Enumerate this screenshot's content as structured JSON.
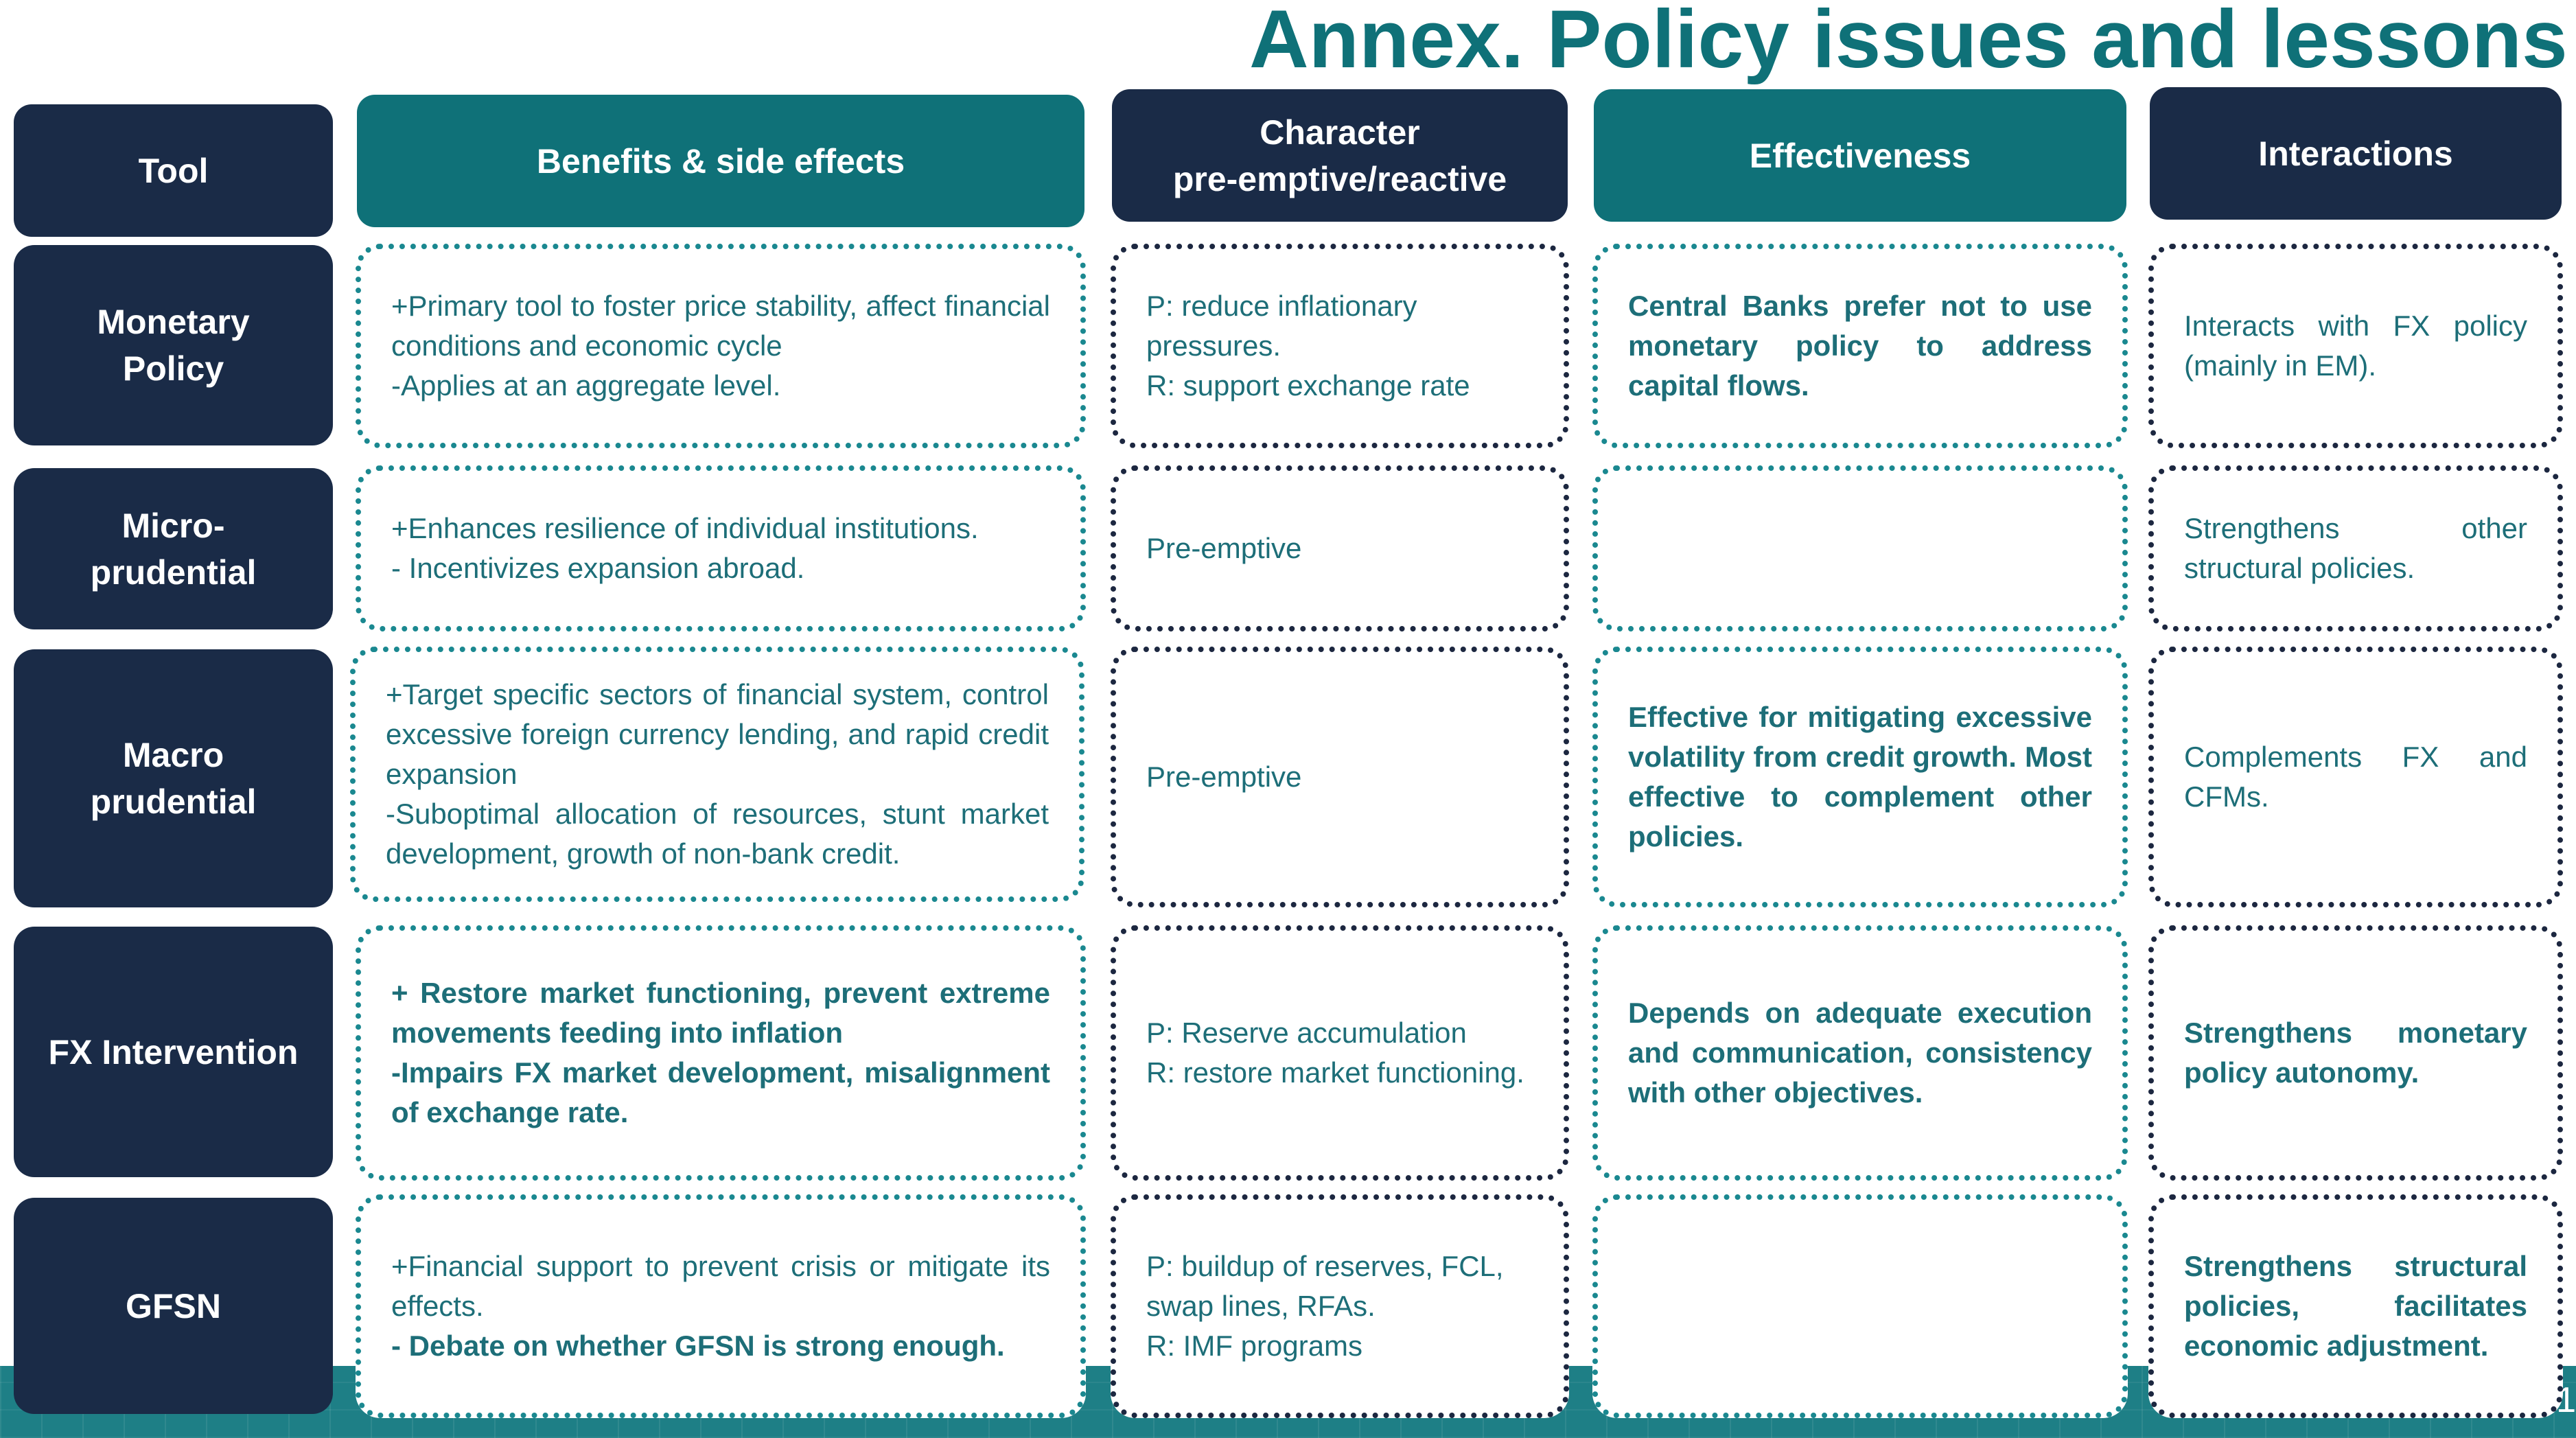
{
  "title": "Annex. Policy issues and lessons",
  "page_number": "1",
  "colors": {
    "navy": "#1a2b47",
    "teal": "#0f7178",
    "text_teal": "#1d6e78"
  },
  "headers": {
    "tool": "Tool",
    "benefits": "Benefits & side  effects",
    "character_line1": "Character",
    "character_line2": "pre-emptive/reactive",
    "effectiveness": "Effectiveness",
    "interactions": "Interactions"
  },
  "rows": [
    {
      "tool": [
        "Monetary",
        "Policy"
      ],
      "benefits": [
        "+Primary tool to foster price stability, affect financial conditions and economic cycle",
        "-Applies at an aggregate level."
      ],
      "character": [
        "P: reduce inflationary pressures.",
        "R: support exchange rate"
      ],
      "effectiveness": [
        "Central Banks prefer not to use monetary policy to address capital flows."
      ],
      "interactions": [
        "Interacts with FX policy (mainly in EM)."
      ]
    },
    {
      "tool": [
        "Micro-",
        "prudential"
      ],
      "benefits": [
        "+Enhances resilience of individual institutions.",
        "- Incentivizes expansion abroad."
      ],
      "character": [
        "Pre-emptive"
      ],
      "effectiveness": [],
      "interactions": [
        "Strengthens other structural policies."
      ]
    },
    {
      "tool": [
        "Macro",
        "prudential"
      ],
      "benefits": [
        "+Target specific sectors of financial system, control excessive foreign currency lending, and rapid credit expansion",
        "-Suboptimal allocation of resources, stunt market development, growth of non-bank credit."
      ],
      "character": [
        "Pre-emptive"
      ],
      "effectiveness": [
        "Effective for mitigating excessive volatility from credit growth. Most effective to complement other policies."
      ],
      "interactions": [
        "Complements FX and CFMs."
      ]
    },
    {
      "tool": [
        "FX Intervention"
      ],
      "benefits": [
        "+ Restore market functioning, prevent extreme movements feeding into inflation",
        "-Impairs FX market development, misalignment of exchange rate."
      ],
      "character": [
        "P: Reserve accumulation",
        "R: restore market functioning."
      ],
      "effectiveness": [
        "Depends on adequate execution and communication, consistency with other objectives."
      ],
      "interactions": [
        "Strengthens monetary policy autonomy."
      ]
    },
    {
      "tool": [
        "GFSN"
      ],
      "benefits": [
        "+Financial support to prevent crisis or mitigate its effects.",
        "- Debate on whether GFSN is strong enough."
      ],
      "character": [
        "P: buildup of reserves, FCL, swap lines, RFAs.",
        "R: IMF programs"
      ],
      "effectiveness": [],
      "interactions": [
        "Strengthens structural policies, facilitates economic adjustment."
      ]
    }
  ]
}
